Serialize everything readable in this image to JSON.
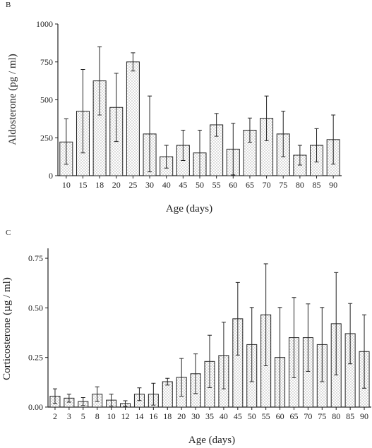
{
  "chart_data": [
    {
      "panel_label": "B",
      "type": "bar",
      "xlabel": "Age (days)",
      "ylabel": "Aldosterone (pg / ml)",
      "categories": [
        "10",
        "15",
        "18",
        "20",
        "25",
        "30",
        "40",
        "45",
        "50",
        "55",
        "60",
        "65",
        "70",
        "75",
        "80",
        "85",
        "90"
      ],
      "values": [
        222,
        425,
        625,
        450,
        750,
        275,
        125,
        200,
        150,
        335,
        175,
        300,
        378,
        275,
        135,
        200,
        238
      ],
      "error_upper": [
        375,
        700,
        850,
        675,
        810,
        525,
        200,
        300,
        300,
        410,
        345,
        380,
        525,
        425,
        200,
        310,
        400
      ],
      "error_lower": [
        75,
        150,
        400,
        225,
        690,
        25,
        50,
        100,
        0,
        260,
        5,
        220,
        231,
        125,
        70,
        90,
        76
      ],
      "yticks": [
        "0",
        "250",
        "500",
        "750",
        "1000"
      ],
      "ylim": [
        0,
        1000
      ],
      "grid": false
    },
    {
      "panel_label": "C",
      "type": "bar",
      "xlabel": "Age (days)",
      "ylabel": "Corticosterone (µg / ml)",
      "categories": [
        "2",
        "3",
        "5",
        "8",
        "10",
        "12",
        "14",
        "16",
        "18",
        "20",
        "30",
        "35",
        "40",
        "45",
        "50",
        "55",
        "60",
        "65",
        "70",
        "75",
        "80",
        "85",
        "90"
      ],
      "values": [
        0.055,
        0.045,
        0.028,
        0.065,
        0.035,
        0.018,
        0.065,
        0.065,
        0.128,
        0.15,
        0.168,
        0.23,
        0.26,
        0.445,
        0.315,
        0.465,
        0.25,
        0.35,
        0.35,
        0.315,
        0.42,
        0.37,
        0.28
      ],
      "error_upper": [
        0.092,
        0.065,
        0.048,
        0.102,
        0.065,
        0.032,
        0.097,
        0.12,
        0.145,
        0.245,
        0.268,
        0.362,
        0.428,
        0.628,
        0.502,
        0.722,
        0.502,
        0.552,
        0.52,
        0.502,
        0.678,
        0.522,
        0.465
      ],
      "error_lower": [
        0.018,
        0.025,
        0.008,
        0.028,
        0.005,
        0.004,
        0.033,
        0.01,
        0.111,
        0.055,
        0.068,
        0.098,
        0.092,
        0.262,
        0.128,
        0.208,
        0.0,
        0.148,
        0.18,
        0.128,
        0.162,
        0.218,
        0.095
      ],
      "yticks": [
        "0.00",
        "0.25",
        "0.50",
        "0.75"
      ],
      "ylim": [
        0,
        0.8
      ],
      "grid": false
    }
  ]
}
